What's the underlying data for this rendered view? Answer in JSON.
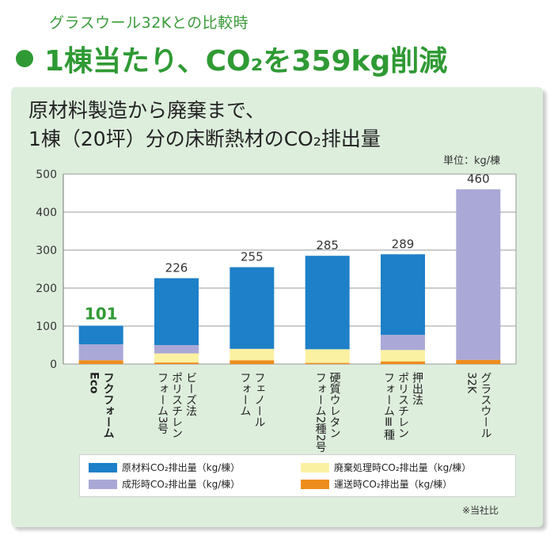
{
  "subtitle": "グラスウール32Kとの比較時",
  "headline": "1棟当たり、CO₂を359kg削減",
  "panel_title_line1": "原材料製造から廃棄まで、",
  "panel_title_line2": "1棟（20坪）分の床断熱材のCO₂排出量",
  "unit_label": "単位：kg/棟",
  "note": "※当社比",
  "colors": {
    "raw": "#1e80c8",
    "molding": "#aaa8d6",
    "disposal": "#fbf1a3",
    "transport": "#ee8d1c",
    "highlight_label": "#2f9a34"
  },
  "chart_data": {
    "type": "bar",
    "stacked": true,
    "ylim": [
      0,
      500
    ],
    "yticks": [
      0,
      100,
      200,
      300,
      400,
      500
    ],
    "grid": true,
    "legend_position": "bottom",
    "categories": [
      "フクフォーム Eco",
      "ビーズ法 ポリスチレン フォーム3号",
      "フェノール フォーム",
      "硬質ウレタン フォーム2種2号",
      "押出法 ポリスチレン フォームⅢ種",
      "グラスウール 32K"
    ],
    "category_lines": [
      [
        "フクフォーム",
        "Eco"
      ],
      [
        "ビーズ法",
        "ポリスチレン",
        "フォーム3号"
      ],
      [
        "フェノール",
        "フォーム"
      ],
      [
        "硬質ウレタン",
        "フォーム2種2号"
      ],
      [
        "押出法",
        "ポリスチレン",
        "フォームⅢ種"
      ],
      [
        "グラスウール",
        "32K"
      ]
    ],
    "totals": [
      101,
      226,
      255,
      285,
      289,
      460
    ],
    "series": [
      {
        "name": "運送時CO₂排出量（kg/棟）",
        "values": [
          10,
          4,
          10,
          3,
          7,
          11
        ]
      },
      {
        "name": "廃棄処理時CO₂排出量（kg/棟）",
        "values": [
          0,
          24,
          30,
          36,
          30,
          0
        ]
      },
      {
        "name": "成形時CO₂排出量（kg/棟）",
        "values": [
          42,
          22,
          0,
          0,
          40,
          449
        ]
      },
      {
        "name": "原材料CO₂排出量（kg/棟）",
        "values": [
          49,
          176,
          215,
          246,
          212,
          0
        ]
      }
    ]
  },
  "legend": [
    {
      "label": "原材料CO₂排出量（kg/棟）",
      "color": "#1e80c8"
    },
    {
      "label": "廃棄処理時CO₂排出量（kg/棟）",
      "color": "#fbf1a3"
    },
    {
      "label": "成形時CO₂排出量（kg/棟）",
      "color": "#aaa8d6"
    },
    {
      "label": "運送時CO₂排出量（kg/棟）",
      "color": "#ee8d1c"
    }
  ]
}
